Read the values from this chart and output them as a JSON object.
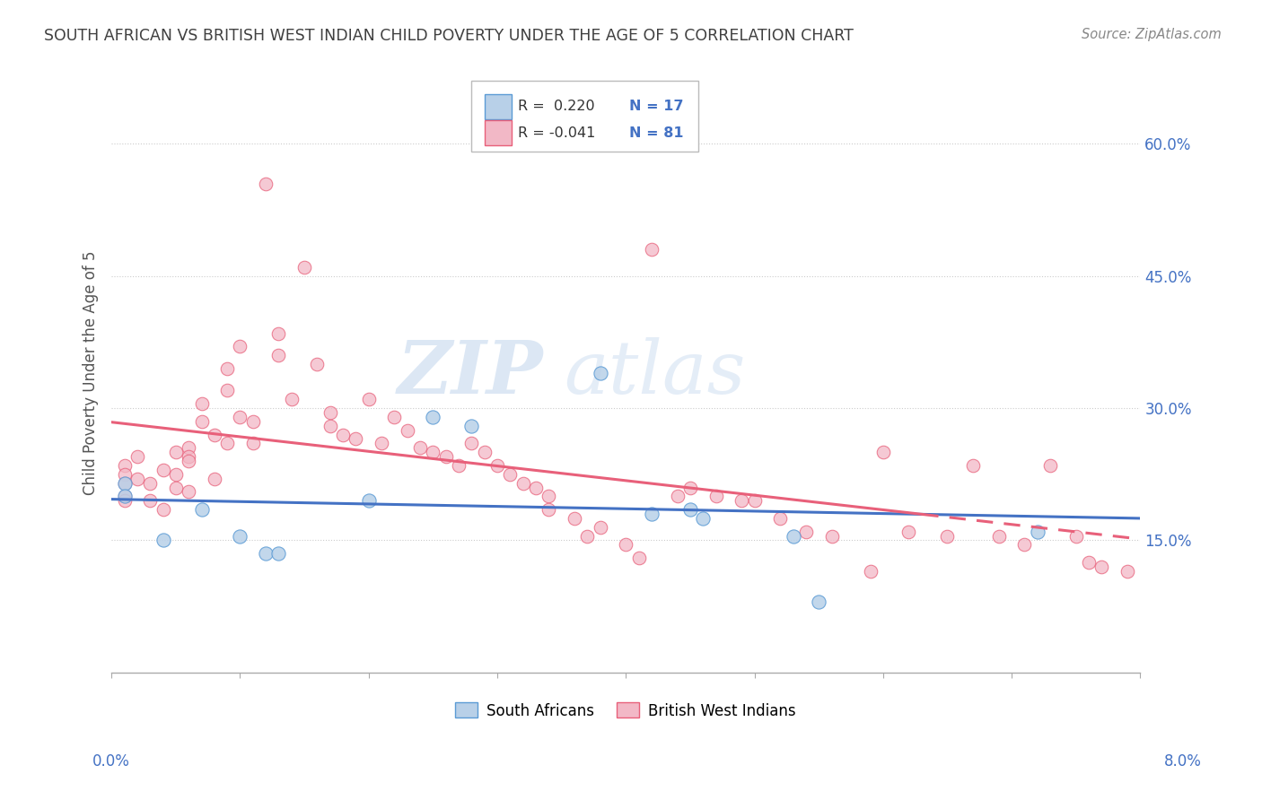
{
  "title": "SOUTH AFRICAN VS BRITISH WEST INDIAN CHILD POVERTY UNDER THE AGE OF 5 CORRELATION CHART",
  "source": "Source: ZipAtlas.com",
  "ylabel": "Child Poverty Under the Age of 5",
  "xlim": [
    0.0,
    0.08
  ],
  "ylim": [
    0.0,
    0.68
  ],
  "watermark_zip": "ZIP",
  "watermark_atlas": "atlas",
  "color_sa": "#b8d0e8",
  "color_bwi": "#f2b8c6",
  "color_sa_edge": "#5b9bd5",
  "color_bwi_edge": "#e8607a",
  "color_sa_line": "#4472c4",
  "color_bwi_line": "#e8607a",
  "color_axis_text": "#4472c4",
  "color_title": "#404040",
  "color_source": "#888888",
  "color_grid": "#cccccc",
  "ytick_positions": [
    0.15,
    0.3,
    0.45,
    0.6
  ],
  "ytick_labels": [
    "15.0%",
    "30.0%",
    "45.0%",
    "60.0%"
  ],
  "sa_x": [
    0.001,
    0.001,
    0.004,
    0.007,
    0.01,
    0.012,
    0.013,
    0.02,
    0.025,
    0.028,
    0.038,
    0.042,
    0.045,
    0.046,
    0.053,
    0.055,
    0.072
  ],
  "sa_y": [
    0.215,
    0.2,
    0.15,
    0.185,
    0.155,
    0.135,
    0.135,
    0.195,
    0.29,
    0.28,
    0.34,
    0.18,
    0.185,
    0.175,
    0.155,
    0.08,
    0.16
  ],
  "bwi_x": [
    0.001,
    0.001,
    0.001,
    0.001,
    0.001,
    0.002,
    0.002,
    0.003,
    0.003,
    0.004,
    0.004,
    0.005,
    0.005,
    0.005,
    0.006,
    0.006,
    0.006,
    0.006,
    0.007,
    0.007,
    0.008,
    0.008,
    0.009,
    0.009,
    0.009,
    0.01,
    0.01,
    0.011,
    0.011,
    0.012,
    0.013,
    0.013,
    0.014,
    0.015,
    0.016,
    0.017,
    0.017,
    0.018,
    0.019,
    0.02,
    0.021,
    0.022,
    0.023,
    0.024,
    0.025,
    0.026,
    0.027,
    0.028,
    0.029,
    0.03,
    0.031,
    0.032,
    0.033,
    0.034,
    0.034,
    0.036,
    0.037,
    0.038,
    0.04,
    0.041,
    0.042,
    0.044,
    0.045,
    0.047,
    0.049,
    0.05,
    0.052,
    0.054,
    0.056,
    0.059,
    0.06,
    0.062,
    0.065,
    0.067,
    0.069,
    0.071,
    0.073,
    0.075,
    0.076,
    0.077,
    0.079
  ],
  "bwi_y": [
    0.235,
    0.225,
    0.215,
    0.2,
    0.195,
    0.245,
    0.22,
    0.215,
    0.195,
    0.23,
    0.185,
    0.25,
    0.225,
    0.21,
    0.255,
    0.245,
    0.24,
    0.205,
    0.305,
    0.285,
    0.27,
    0.22,
    0.345,
    0.32,
    0.26,
    0.37,
    0.29,
    0.285,
    0.26,
    0.555,
    0.385,
    0.36,
    0.31,
    0.46,
    0.35,
    0.295,
    0.28,
    0.27,
    0.265,
    0.31,
    0.26,
    0.29,
    0.275,
    0.255,
    0.25,
    0.245,
    0.235,
    0.26,
    0.25,
    0.235,
    0.225,
    0.215,
    0.21,
    0.2,
    0.185,
    0.175,
    0.155,
    0.165,
    0.145,
    0.13,
    0.48,
    0.2,
    0.21,
    0.2,
    0.195,
    0.195,
    0.175,
    0.16,
    0.155,
    0.115,
    0.25,
    0.16,
    0.155,
    0.235,
    0.155,
    0.145,
    0.235,
    0.155,
    0.125,
    0.12,
    0.115
  ]
}
